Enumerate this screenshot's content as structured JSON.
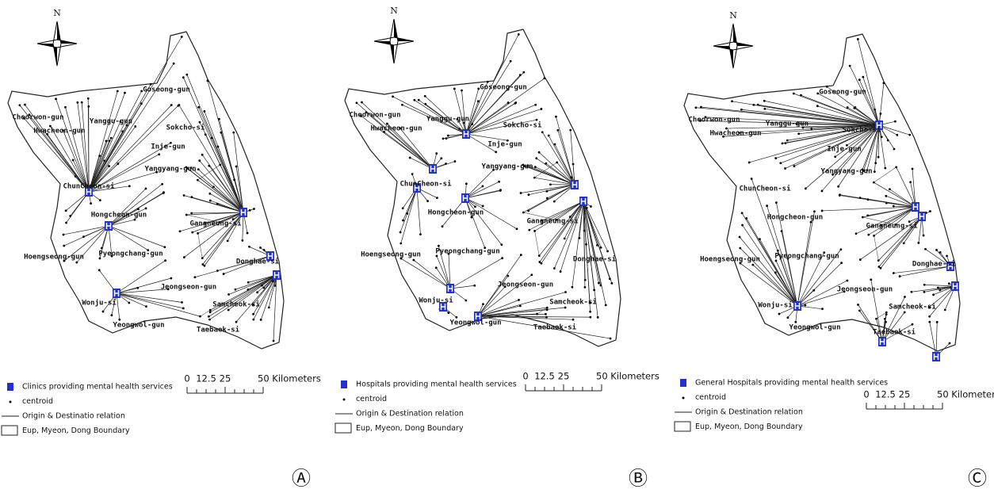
{
  "panels": [
    {
      "letter": "Ⓐ",
      "north": "N",
      "regions": [
        "Goseong-gun",
        "Cheorwon-gun",
        "Hwacheon-gun",
        "Yanggu-gun",
        "Sokcho-si",
        "Inje-gun",
        "Yangyang-gun",
        "ChunCheon-si",
        "Hongcheon-gun",
        "Gangneung-si",
        "Hoengseong-gun",
        "Pyeongchang-gun",
        "Donghae-si",
        "Jeongseon-gun",
        "Wonju-si",
        "Samcheok-si",
        "Yeongwol-gun",
        "Taebaek-si"
      ],
      "legend": [
        "Clinics providing mental health services",
        "centroid",
        "Origin & Destinatio relation",
        "Eup, Myeon, Dong Boundary"
      ],
      "scale": {
        "ticks": [
          0,
          12.5,
          25
        ],
        "end": "50 Kilometers"
      }
    },
    {
      "letter": "Ⓑ",
      "north": "N",
      "regions": [
        "Goseong-gun",
        "Cheorwon-gun",
        "Hwacheon-gun",
        "Yanggu-gun",
        "Sokcho-si",
        "Inje-gun",
        "Yangyang-gun",
        "ChunCheon-si",
        "Hongcheon-gun",
        "Gangneung-si",
        "Hoengseong-gun",
        "Pyeongchang-gun",
        "Donghae-si",
        "Jeongseon-gun",
        "Wonju-si",
        "Samcheok-si",
        "Yeongwol-gun",
        "Taebaek-si"
      ],
      "legend": [
        "Hospitals providing mental health services",
        "centroid",
        "Origin & Destination relation",
        "Eup, Myeon, Dong Boundary"
      ],
      "scale": {
        "ticks": [
          0,
          12.5,
          25
        ],
        "end": "50 Kilometers"
      }
    },
    {
      "letter": "Ⓒ",
      "north": "N",
      "regions": [
        "Goseong-gun",
        "Cheorwon-gun",
        "Hwacheon-gun",
        "Yanggu-gun",
        "Sokcho-si",
        "Inje-gun",
        "Yangyang-gun",
        "ChunCheon-si",
        "Hongcheon-gun",
        "Gangneung-si",
        "Hoengseong-gun",
        "Pyeongchang-gun",
        "Donghae-si",
        "Jeongseon-gun",
        "Wonju-si",
        "Samcheok-si",
        "Yeongwol-gun",
        "Taebaek-si"
      ],
      "legend": [
        "General Hospitals providing mental health services",
        "centroid",
        "Origin & Destination relation",
        "Eup, Myeon, Dong Boundary"
      ],
      "scale": {
        "ticks": [
          0,
          12.5,
          25
        ],
        "end": "50 Kilometers"
      }
    }
  ]
}
